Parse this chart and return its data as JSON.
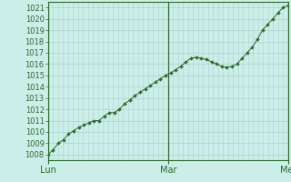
{
  "background_color": "#cceee8",
  "grid_color": "#aad4cc",
  "line_color": "#2d6a2d",
  "marker_color": "#2d6a2d",
  "ylim": [
    1007.5,
    1021.5
  ],
  "yticks": [
    1008,
    1009,
    1010,
    1011,
    1012,
    1013,
    1014,
    1015,
    1016,
    1017,
    1018,
    1019,
    1020,
    1021
  ],
  "day_labels": [
    "Lun",
    "Mar",
    "Mer"
  ],
  "day_positions": [
    0,
    16,
    32
  ],
  "xlim": [
    0,
    32
  ],
  "pressure": [
    1008.0,
    1008.4,
    1009.0,
    1009.3,
    1009.8,
    1010.1,
    1010.4,
    1010.6,
    1010.8,
    1011.0,
    1011.0,
    1011.4,
    1011.7,
    1011.7,
    1012.0,
    1012.5,
    1012.8,
    1013.2,
    1013.5,
    1013.8,
    1014.1,
    1014.4,
    1014.7,
    1015.0,
    1015.2,
    1015.5,
    1015.8,
    1016.2,
    1016.5,
    1016.6,
    1016.5,
    1016.4,
    1016.2,
    1016.0,
    1015.8,
    1015.7,
    1015.8,
    1016.0,
    1016.5,
    1017.0,
    1017.5,
    1018.2,
    1019.0,
    1019.5,
    1020.0,
    1020.5,
    1021.0,
    1021.2
  ],
  "tick_color": "#2d6a2d",
  "axis_color": "#2d6a2d",
  "fontsize_ticks": 6.0,
  "fontsize_labels": 7.0,
  "border_color": "#2d6a2d",
  "day_line_color": "#2d6a2d"
}
